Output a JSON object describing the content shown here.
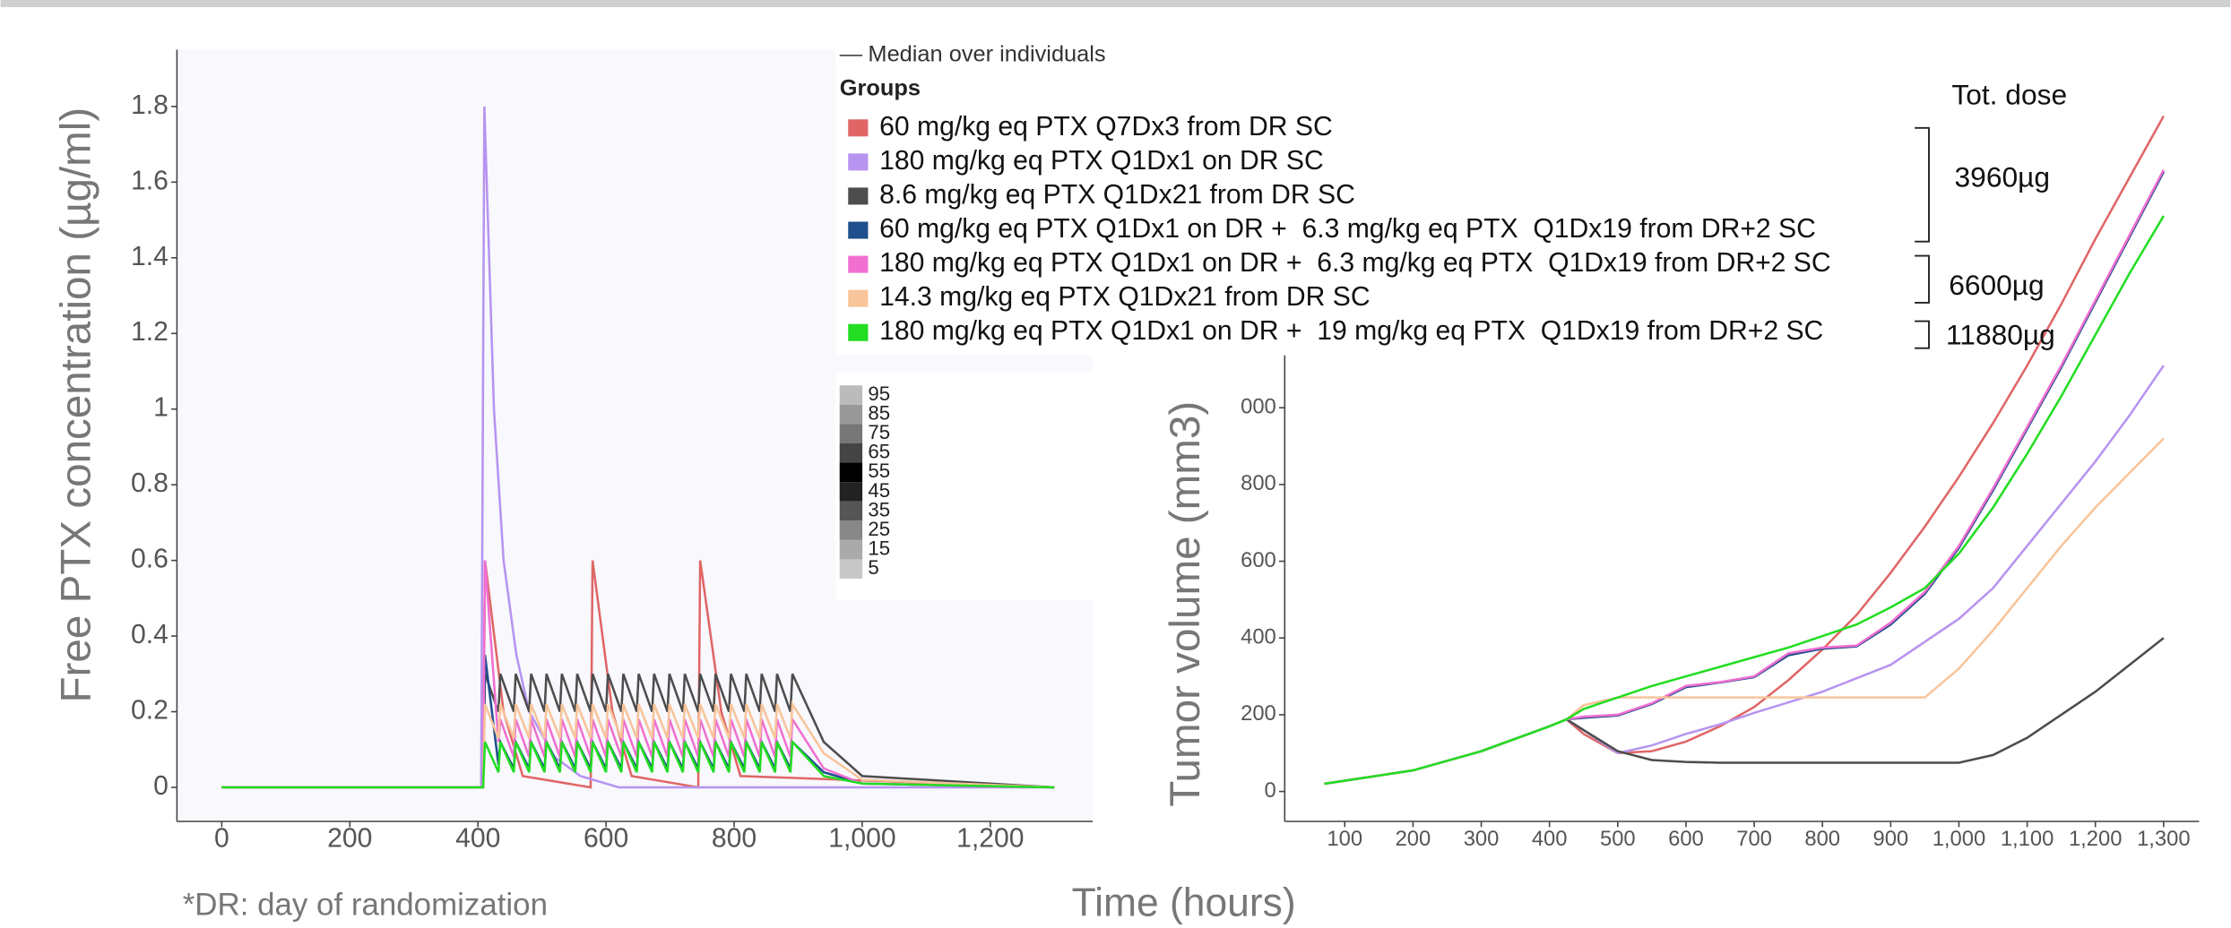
{
  "legend": {
    "median_label": "Median over individuals",
    "title": "Groups"
  },
  "percentile_legend": [
    95,
    85,
    75,
    65,
    55,
    45,
    35,
    25,
    15,
    5
  ],
  "annotations": {
    "dose_header": "Tot. dose",
    "dose_1": "3960µg",
    "dose_2": "6600µg",
    "dose_3": "11880µg",
    "footnote": "*DR: day of randomization",
    "x_label": "Time (hours)"
  },
  "chart_data": [
    {
      "type": "line",
      "y_label": "Free PTX concentration (µg/ml)",
      "xlim": [
        -70,
        1360
      ],
      "ylim": [
        -0.09,
        1.95
      ],
      "xticks": [
        0,
        200,
        400,
        600,
        800,
        {
          "value": 1000,
          "label": "1,000"
        },
        {
          "value": 1200,
          "label": "1,200"
        }
      ],
      "yticks": [
        0,
        0.2,
        0.4,
        0.6,
        0.8,
        1,
        1.2,
        1.4,
        1.6,
        1.8
      ],
      "series": [
        {
          "name": "60 mg/kg eq PTX Q7Dx3 from DR SC",
          "color": "#e06666",
          "x": [
            0,
            408,
            411,
            440,
            470,
            576,
            579,
            610,
            640,
            744,
            747,
            780,
            810,
            1300
          ],
          "values": [
            0,
            0,
            0.6,
            0.2,
            0.03,
            0,
            0.6,
            0.2,
            0.03,
            0,
            0.6,
            0.2,
            0.03,
            0
          ]
        },
        {
          "name": "180 mg/kg eq PTX Q1Dx1 on DR SC",
          "color": "#b794f0",
          "x": [
            0,
            405,
            410,
            425,
            440,
            460,
            480,
            520,
            560,
            620,
            1300
          ],
          "values": [
            0,
            0,
            1.8,
            1.0,
            0.6,
            0.35,
            0.2,
            0.08,
            0.03,
            0,
            0
          ]
        },
        {
          "name": "8.6 mg/kg eq PTX Q1Dx21 from DR SC",
          "color": "#4d4d4d",
          "x": [
            0,
            408,
            411,
            432,
            435,
            456,
            459,
            480,
            483,
            504,
            507,
            528,
            531,
            552,
            555,
            576,
            579,
            600,
            603,
            624,
            627,
            648,
            651,
            672,
            675,
            696,
            699,
            720,
            723,
            744,
            747,
            768,
            771,
            792,
            795,
            816,
            819,
            840,
            843,
            864,
            867,
            888,
            891,
            940,
            1000,
            1300
          ],
          "values": [
            0,
            0,
            0.3,
            0.2,
            0.3,
            0.2,
            0.3,
            0.2,
            0.3,
            0.2,
            0.3,
            0.2,
            0.3,
            0.2,
            0.3,
            0.2,
            0.3,
            0.2,
            0.3,
            0.2,
            0.3,
            0.2,
            0.3,
            0.2,
            0.3,
            0.2,
            0.3,
            0.2,
            0.3,
            0.2,
            0.3,
            0.2,
            0.3,
            0.2,
            0.3,
            0.2,
            0.3,
            0.2,
            0.3,
            0.2,
            0.3,
            0.2,
            0.3,
            0.12,
            0.03,
            0
          ]
        },
        {
          "name": "60 mg/kg eq PTX Q1Dx1 on DR +  6.3 mg/kg eq PTX  Q1Dx19 from DR+2 SC",
          "color": "#1f4e8c",
          "x": [
            0,
            408,
            411,
            432,
            435,
            456,
            459,
            480,
            483,
            504,
            507,
            528,
            531,
            552,
            555,
            576,
            579,
            600,
            603,
            624,
            627,
            648,
            651,
            672,
            675,
            696,
            699,
            720,
            723,
            744,
            747,
            768,
            771,
            792,
            795,
            816,
            819,
            840,
            843,
            864,
            867,
            888,
            891,
            940,
            1000,
            1300
          ],
          "values": [
            0,
            0,
            0.35,
            0.06,
            0.12,
            0.05,
            0.12,
            0.05,
            0.12,
            0.05,
            0.12,
            0.05,
            0.12,
            0.05,
            0.12,
            0.05,
            0.12,
            0.05,
            0.12,
            0.05,
            0.12,
            0.05,
            0.12,
            0.05,
            0.12,
            0.05,
            0.12,
            0.05,
            0.12,
            0.05,
            0.12,
            0.05,
            0.12,
            0.05,
            0.12,
            0.05,
            0.12,
            0.05,
            0.12,
            0.05,
            0.12,
            0.05,
            0.12,
            0.04,
            0.01,
            0
          ]
        },
        {
          "name": "180 mg/kg eq PTX Q1Dx1 on DR +  6.3 mg/kg eq PTX  Q1Dx19 from DR+2 SC",
          "color": "#f06fd0",
          "x": [
            0,
            408,
            411,
            432,
            435,
            456,
            459,
            480,
            483,
            504,
            507,
            528,
            531,
            552,
            555,
            576,
            579,
            600,
            603,
            624,
            627,
            648,
            651,
            672,
            675,
            696,
            699,
            720,
            723,
            744,
            747,
            768,
            771,
            792,
            795,
            816,
            819,
            840,
            843,
            864,
            867,
            888,
            891,
            940,
            1000,
            1300
          ],
          "values": [
            0,
            0,
            0.6,
            0.12,
            0.18,
            0.08,
            0.18,
            0.08,
            0.18,
            0.08,
            0.18,
            0.08,
            0.18,
            0.08,
            0.18,
            0.08,
            0.18,
            0.08,
            0.18,
            0.08,
            0.18,
            0.08,
            0.18,
            0.08,
            0.18,
            0.08,
            0.18,
            0.08,
            0.18,
            0.08,
            0.18,
            0.08,
            0.18,
            0.08,
            0.18,
            0.08,
            0.18,
            0.08,
            0.18,
            0.08,
            0.18,
            0.08,
            0.18,
            0.05,
            0.01,
            0
          ]
        },
        {
          "name": "14.3 mg/kg eq PTX Q1Dx21 from DR SC",
          "color": "#f8c49a",
          "x": [
            0,
            408,
            411,
            432,
            435,
            456,
            459,
            480,
            483,
            504,
            507,
            528,
            531,
            552,
            555,
            576,
            579,
            600,
            603,
            624,
            627,
            648,
            651,
            672,
            675,
            696,
            699,
            720,
            723,
            744,
            747,
            768,
            771,
            792,
            795,
            816,
            819,
            840,
            843,
            864,
            867,
            888,
            891,
            940,
            1000,
            1300
          ],
          "values": [
            0,
            0,
            0.22,
            0.13,
            0.22,
            0.13,
            0.22,
            0.13,
            0.22,
            0.13,
            0.22,
            0.13,
            0.22,
            0.13,
            0.22,
            0.13,
            0.22,
            0.13,
            0.22,
            0.13,
            0.22,
            0.13,
            0.22,
            0.13,
            0.22,
            0.13,
            0.22,
            0.13,
            0.22,
            0.13,
            0.22,
            0.13,
            0.22,
            0.13,
            0.22,
            0.13,
            0.22,
            0.13,
            0.22,
            0.13,
            0.22,
            0.13,
            0.22,
            0.09,
            0.02,
            0
          ]
        },
        {
          "name": "180 mg/kg eq PTX Q1Dx1 on DR +  19 mg/kg eq PTX  Q1Dx19 from DR+2 SC",
          "color": "#22dd22",
          "x": [
            0,
            408,
            411,
            432,
            435,
            456,
            459,
            480,
            483,
            504,
            507,
            528,
            531,
            552,
            555,
            576,
            579,
            600,
            603,
            624,
            627,
            648,
            651,
            672,
            675,
            696,
            699,
            720,
            723,
            744,
            747,
            768,
            771,
            792,
            795,
            816,
            819,
            840,
            843,
            864,
            867,
            888,
            891,
            940,
            1000,
            1300
          ],
          "values": [
            0,
            0,
            0.12,
            0.04,
            0.12,
            0.04,
            0.12,
            0.04,
            0.12,
            0.04,
            0.12,
            0.04,
            0.12,
            0.04,
            0.12,
            0.04,
            0.12,
            0.04,
            0.12,
            0.04,
            0.12,
            0.04,
            0.12,
            0.04,
            0.12,
            0.04,
            0.12,
            0.04,
            0.12,
            0.04,
            0.12,
            0.04,
            0.12,
            0.04,
            0.12,
            0.04,
            0.12,
            0.04,
            0.12,
            0.04,
            0.12,
            0.04,
            0.12,
            0.03,
            0.01,
            0
          ]
        }
      ]
    },
    {
      "type": "line",
      "y_label": "Tumor volume (mm3)",
      "xlim": [
        12,
        1352
      ],
      "ylim": [
        -78,
        1933
      ],
      "xticks": [
        100,
        200,
        300,
        400,
        500,
        600,
        700,
        800,
        900,
        {
          "value": 1000,
          "label": "1,000"
        },
        {
          "value": 1100,
          "label": "1,100"
        },
        {
          "value": 1200,
          "label": "1,200"
        },
        {
          "value": 1300,
          "label": "1,300"
        }
      ],
      "yticks": [
        0,
        200,
        400,
        600,
        800,
        {
          "value": 1000,
          "label": "000"
        },
        {
          "value": 1800,
          "label": "800"
        }
      ],
      "x": [
        70,
        200,
        300,
        400,
        425,
        450,
        500,
        550,
        600,
        650,
        700,
        750,
        800,
        850,
        900,
        950,
        1000,
        1050,
        1100,
        1150,
        1200,
        1250,
        1300
      ],
      "series": [
        {
          "name": "60 mg/kg eq PTX Q7Dx3 from DR SC",
          "color": "#e06666",
          "values": [
            20,
            55,
            105,
            170,
            188,
            150,
            100,
            105,
            130,
            170,
            220,
            290,
            370,
            460,
            570,
            690,
            820,
            960,
            1110,
            1270,
            1440,
            1600,
            1760
          ]
        },
        {
          "name": "180 mg/kg eq PTX Q1Dx1 on DR SC",
          "color": "#b794f0",
          "values": [
            20,
            55,
            105,
            170,
            188,
            160,
            100,
            120,
            150,
            175,
            205,
            232,
            260,
            295,
            330,
            390,
            450,
            530,
            640,
            750,
            860,
            980,
            1110
          ]
        },
        {
          "name": "8.6 mg/kg eq PTX Q1Dx21 from DR SC",
          "color": "#4d4d4d",
          "values": [
            20,
            55,
            105,
            170,
            188,
            160,
            105,
            82,
            77,
            75,
            75,
            75,
            75,
            75,
            75,
            75,
            75,
            95,
            140,
            200,
            260,
            330,
            400
          ]
        },
        {
          "name": "60 mg/kg eq PTX Q1Dx1 on DR +  6.3 mg/kg eq PTX  Q1Dx19 from DR+2 SC",
          "color": "#1f4e8c",
          "values": [
            20,
            55,
            105,
            170,
            188,
            192,
            198,
            228,
            272,
            284,
            298,
            355,
            372,
            378,
            435,
            515,
            635,
            785,
            945,
            1105,
            1275,
            1445,
            1615
          ]
        },
        {
          "name": "180 mg/kg eq PTX Q1Dx1 on DR +  6.3 mg/kg eq PTX  Q1Dx19 from DR+2 SC",
          "color": "#f06fd0",
          "values": [
            20,
            55,
            105,
            170,
            188,
            195,
            200,
            230,
            275,
            285,
            300,
            360,
            375,
            380,
            440,
            520,
            640,
            790,
            950,
            1110,
            1280,
            1450,
            1620
          ]
        },
        {
          "name": "14.3 mg/kg eq PTX Q1Dx21 from DR SC",
          "color": "#f8c49a",
          "values": [
            20,
            55,
            105,
            170,
            188,
            225,
            245,
            245,
            245,
            245,
            245,
            245,
            245,
            245,
            245,
            245,
            320,
            420,
            530,
            640,
            740,
            830,
            920
          ]
        },
        {
          "name": "180 mg/kg eq PTX Q1Dx1 on DR +  19 mg/kg eq PTX  Q1Dx19 from DR+2 SC",
          "color": "#22dd22",
          "values": [
            20,
            55,
            105,
            170,
            188,
            215,
            245,
            275,
            300,
            325,
            350,
            375,
            405,
            435,
            480,
            530,
            620,
            740,
            880,
            1030,
            1190,
            1350,
            1500
          ]
        }
      ]
    }
  ]
}
